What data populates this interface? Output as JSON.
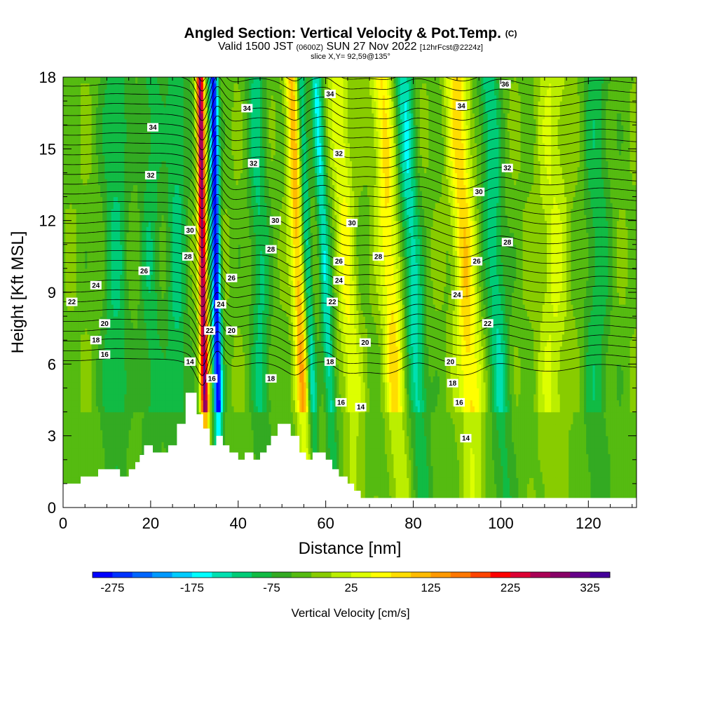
{
  "header": {
    "title": "Angled Section: Vertical Velocity & Pot.Temp.",
    "title_suffix": "(C)",
    "valid_prefix": "Valid 1500 JST",
    "valid_z": "(0600Z)",
    "valid_date": "SUN 27 Nov 2022",
    "valid_fcst": "[12hrFcst@2224z]",
    "slice": "slice X,Y= 92,59@135°"
  },
  "chart_data": {
    "type": "heatmap",
    "xlabel": "Distance [nm]",
    "ylabel": "Height [Kft MSL]",
    "xlim": [
      0,
      131
    ],
    "ylim": [
      0,
      18
    ],
    "xticks": [
      0,
      20,
      40,
      60,
      80,
      100,
      120
    ],
    "yticks": [
      0,
      3,
      6,
      9,
      12,
      15,
      18
    ],
    "colorbar": {
      "title": "Vertical Velocity [cm/s]",
      "tick_labels": [
        "-275",
        "-175",
        "-75",
        "25",
        "125",
        "225",
        "325"
      ],
      "min": -300,
      "max": 350,
      "step": 25,
      "colors": [
        "#0000ff",
        "#0033ff",
        "#0066ff",
        "#0099ff",
        "#00ccff",
        "#00ffff",
        "#00e0b0",
        "#00cc77",
        "#11bb44",
        "#33aa22",
        "#55bb11",
        "#88cc00",
        "#bbee00",
        "#ddff00",
        "#ffff00",
        "#ffdd00",
        "#ffbb00",
        "#ff9900",
        "#ff7700",
        "#ff4400",
        "#ff0000",
        "#dd0033",
        "#aa0055",
        "#880066",
        "#660088",
        "#440099"
      ]
    },
    "terrain_kft": [
      [
        0,
        1.0
      ],
      [
        4,
        1.0
      ],
      [
        4,
        1.3
      ],
      [
        8,
        1.3
      ],
      [
        8,
        1.6
      ],
      [
        13,
        1.6
      ],
      [
        13,
        1.3
      ],
      [
        15,
        1.3
      ],
      [
        15,
        1.6
      ],
      [
        16.5,
        1.6
      ],
      [
        16.5,
        1.9
      ],
      [
        17.5,
        1.9
      ],
      [
        17.5,
        2.2
      ],
      [
        18.5,
        2.2
      ],
      [
        18.5,
        2.6
      ],
      [
        20.5,
        2.6
      ],
      [
        20.5,
        2.3
      ],
      [
        24,
        2.3
      ],
      [
        24,
        2.6
      ],
      [
        26,
        2.6
      ],
      [
        26,
        3.5
      ],
      [
        28,
        3.5
      ],
      [
        28,
        4.8
      ],
      [
        30.5,
        4.8
      ],
      [
        30.5,
        3.9
      ],
      [
        32,
        3.9
      ],
      [
        32,
        3.3
      ],
      [
        33.5,
        3.3
      ],
      [
        33.5,
        2.6
      ],
      [
        35,
        2.6
      ],
      [
        35,
        3.0
      ],
      [
        36.5,
        3.0
      ],
      [
        36.5,
        2.6
      ],
      [
        38,
        2.6
      ],
      [
        38,
        2.3
      ],
      [
        40,
        2.3
      ],
      [
        40,
        2.0
      ],
      [
        41.5,
        2.0
      ],
      [
        41.5,
        2.3
      ],
      [
        43.5,
        2.3
      ],
      [
        43.5,
        2.0
      ],
      [
        45,
        2.0
      ],
      [
        45,
        2.3
      ],
      [
        46.5,
        2.3
      ],
      [
        46.5,
        2.6
      ],
      [
        47.5,
        2.6
      ],
      [
        47.5,
        3.0
      ],
      [
        49,
        3.0
      ],
      [
        49,
        3.5
      ],
      [
        52,
        3.5
      ],
      [
        52,
        3.0
      ],
      [
        54,
        3.0
      ],
      [
        54,
        2.3
      ],
      [
        55.5,
        2.3
      ],
      [
        55.5,
        2.0
      ],
      [
        57,
        2.0
      ],
      [
        57,
        2.3
      ],
      [
        60,
        2.3
      ],
      [
        60,
        2.0
      ],
      [
        61.5,
        2.0
      ],
      [
        61.5,
        1.6
      ],
      [
        63,
        1.6
      ],
      [
        63,
        1.3
      ],
      [
        65,
        1.3
      ],
      [
        65,
        1.0
      ],
      [
        66.5,
        1.0
      ],
      [
        66.5,
        0.7
      ],
      [
        68,
        0.7
      ],
      [
        68,
        0.4
      ],
      [
        131,
        0.4
      ],
      [
        131,
        0
      ],
      [
        0,
        0
      ]
    ],
    "updraft_bands": [
      {
        "x": 32,
        "w": 0.9,
        "amp": 320,
        "tilt": -0.08
      },
      {
        "x": 35,
        "w": 1.0,
        "amp": -270,
        "tilt": -0.08
      },
      {
        "x": 54,
        "w": 1.6,
        "amp": 150,
        "tilt": -0.2
      },
      {
        "x": 56,
        "w": 1.1,
        "amp": -120,
        "tilt": -0.2
      },
      {
        "x": 60,
        "w": 1.3,
        "amp": -115,
        "tilt": -0.24
      },
      {
        "x": 65,
        "w": 2.2,
        "amp": 80,
        "tilt": -0.22
      },
      {
        "x": 75,
        "w": 2.4,
        "amp": 110,
        "tilt": -0.26
      },
      {
        "x": 80,
        "w": 2.2,
        "amp": -110,
        "tilt": -0.26
      },
      {
        "x": 92,
        "w": 2.6,
        "amp": 120,
        "tilt": -0.22
      },
      {
        "x": 99,
        "w": 2.4,
        "amp": -90,
        "tilt": -0.22
      },
      {
        "x": 26,
        "w": 2.4,
        "amp": -75,
        "tilt": 0
      },
      {
        "x": 20,
        "w": 2.5,
        "amp": -60,
        "tilt": 0
      },
      {
        "x": 12,
        "w": 3.0,
        "amp": -70,
        "tilt": 0
      },
      {
        "x": 45,
        "w": 2.2,
        "amp": -75,
        "tilt": -0.1
      },
      {
        "x": 112,
        "w": 3.5,
        "amp": 55,
        "tilt": 0
      },
      {
        "x": 122,
        "w": 3.0,
        "amp": -60,
        "tilt": 0
      }
    ],
    "contour_labels": [
      {
        "x": 101,
        "y": 17.7,
        "text": "36"
      },
      {
        "x": 61,
        "y": 17.3,
        "text": "34"
      },
      {
        "x": 91,
        "y": 16.8,
        "text": "34"
      },
      {
        "x": 42,
        "y": 16.7,
        "text": "34"
      },
      {
        "x": 20.5,
        "y": 15.9,
        "text": "34"
      },
      {
        "x": 63,
        "y": 14.8,
        "text": "32"
      },
      {
        "x": 43.5,
        "y": 14.4,
        "text": "32"
      },
      {
        "x": 101.5,
        "y": 14.2,
        "text": "32"
      },
      {
        "x": 20,
        "y": 13.9,
        "text": "32"
      },
      {
        "x": 95,
        "y": 13.2,
        "text": "30"
      },
      {
        "x": 48.5,
        "y": 12.0,
        "text": "30"
      },
      {
        "x": 66,
        "y": 11.9,
        "text": "30"
      },
      {
        "x": 29,
        "y": 11.6,
        "text": "30"
      },
      {
        "x": 101.5,
        "y": 11.1,
        "text": "28"
      },
      {
        "x": 47.5,
        "y": 10.8,
        "text": "28"
      },
      {
        "x": 72,
        "y": 10.5,
        "text": "28"
      },
      {
        "x": 28.5,
        "y": 10.5,
        "text": "28"
      },
      {
        "x": 63,
        "y": 10.3,
        "text": "26"
      },
      {
        "x": 94.5,
        "y": 10.3,
        "text": "26"
      },
      {
        "x": 18.5,
        "y": 9.9,
        "text": "26"
      },
      {
        "x": 38.5,
        "y": 9.6,
        "text": "26"
      },
      {
        "x": 63,
        "y": 9.5,
        "text": "24"
      },
      {
        "x": 7.5,
        "y": 9.3,
        "text": "24"
      },
      {
        "x": 90,
        "y": 8.9,
        "text": "24"
      },
      {
        "x": 36,
        "y": 8.5,
        "text": "24"
      },
      {
        "x": 61.5,
        "y": 8.6,
        "text": "22"
      },
      {
        "x": 2,
        "y": 8.6,
        "text": "22"
      },
      {
        "x": 97,
        "y": 7.7,
        "text": "22"
      },
      {
        "x": 9.5,
        "y": 7.7,
        "text": "20"
      },
      {
        "x": 33.5,
        "y": 7.4,
        "text": "22"
      },
      {
        "x": 38.5,
        "y": 7.4,
        "text": "20"
      },
      {
        "x": 69,
        "y": 6.9,
        "text": "20"
      },
      {
        "x": 7.5,
        "y": 7.0,
        "text": "18"
      },
      {
        "x": 9.5,
        "y": 6.4,
        "text": "16"
      },
      {
        "x": 88.5,
        "y": 6.1,
        "text": "20"
      },
      {
        "x": 61,
        "y": 6.1,
        "text": "18"
      },
      {
        "x": 29,
        "y": 6.1,
        "text": "14"
      },
      {
        "x": 47.5,
        "y": 5.4,
        "text": "18"
      },
      {
        "x": 34,
        "y": 5.4,
        "text": "16"
      },
      {
        "x": 89,
        "y": 5.2,
        "text": "18"
      },
      {
        "x": 90.5,
        "y": 4.4,
        "text": "16"
      },
      {
        "x": 63.5,
        "y": 4.4,
        "text": "16"
      },
      {
        "x": 68,
        "y": 4.2,
        "text": "14"
      },
      {
        "x": 92,
        "y": 2.9,
        "text": "14"
      }
    ]
  }
}
